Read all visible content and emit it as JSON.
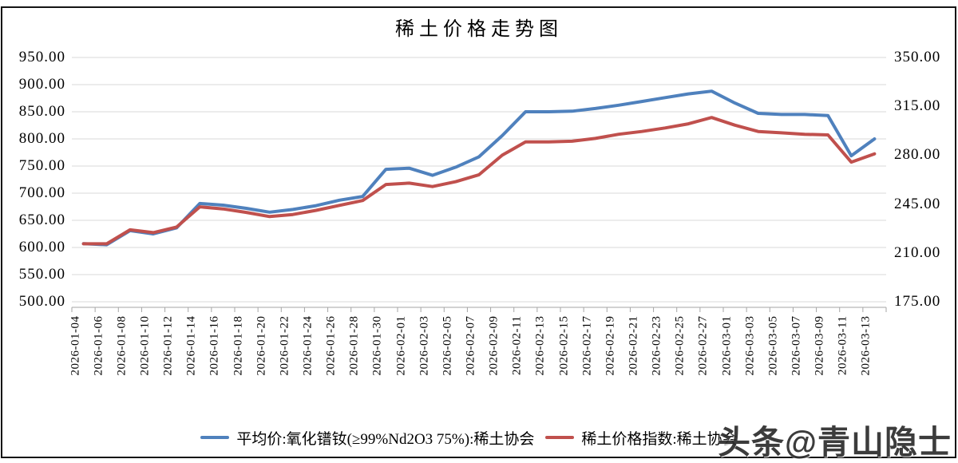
{
  "title": "稀土价格走势图",
  "watermark": "头条@青山隐士",
  "chart_data": {
    "type": "line",
    "title": "稀土价格走势图",
    "legend_position": "bottom",
    "grid": true,
    "colors": {
      "gridline": "#D9D9D9",
      "axis": "#A6A6A6",
      "text": "#000000",
      "border": "#141414"
    },
    "categories": [
      "2026-01-04",
      "2026-01-06",
      "2026-01-08",
      "2026-01-10",
      "2026-01-12",
      "2026-01-14",
      "2026-01-16",
      "2026-01-18",
      "2026-01-20",
      "2026-01-22",
      "2026-01-24",
      "2026-01-26",
      "2026-01-28",
      "2026-01-30",
      "2026-02-01",
      "2026-02-03",
      "2026-02-05",
      "2026-02-07",
      "2026-02-09",
      "2026-02-11",
      "2026-02-13",
      "2026-02-15",
      "2026-02-17",
      "2026-02-19",
      "2026-02-21",
      "2026-02-23",
      "2026-02-25",
      "2026-02-27",
      "2026-03-01",
      "2026-03-03",
      "2026-03-05",
      "2026-03-07",
      "2026-03-09",
      "2026-03-11",
      "2026-03-13"
    ],
    "series": [
      {
        "name": "平均价:氧化镨钕(≥99%Nd2O3 75%):稀土协会",
        "axis": "left",
        "color": "#4F81BD",
        "values": [
          607,
          605,
          631,
          625,
          636,
          681,
          678,
          672,
          665,
          670,
          677,
          687,
          694,
          744,
          746,
          733,
          748,
          767,
          806,
          850,
          850,
          851,
          856,
          862,
          869,
          876,
          883,
          888,
          866,
          847,
          845,
          845,
          843,
          769,
          800
        ]
      },
      {
        "name": "稀土价格指数:稀土协会",
        "axis": "right",
        "color": "#C0504D",
        "values": [
          216.5,
          216.5,
          226.5,
          224.5,
          228.5,
          243,
          241.5,
          239,
          236,
          237.5,
          240.5,
          244,
          247.5,
          259,
          260,
          257.5,
          261,
          266,
          280,
          289.5,
          289.5,
          290,
          292,
          295,
          297,
          299.5,
          302.5,
          307,
          301.5,
          297,
          296,
          295,
          294.5,
          275,
          281
        ]
      }
    ],
    "left_axis": {
      "min": 500,
      "max": 950,
      "step": 50,
      "tick_labels": [
        "950.00",
        "900.00",
        "850.00",
        "800.00",
        "750.00",
        "700.00",
        "650.00",
        "600.00",
        "550.00",
        "500.00"
      ]
    },
    "right_axis": {
      "min": 175,
      "max": 350,
      "step": 35,
      "tick_labels": [
        "350.00",
        "315.00",
        "280.00",
        "245.00",
        "210.00",
        "175.00"
      ]
    }
  }
}
